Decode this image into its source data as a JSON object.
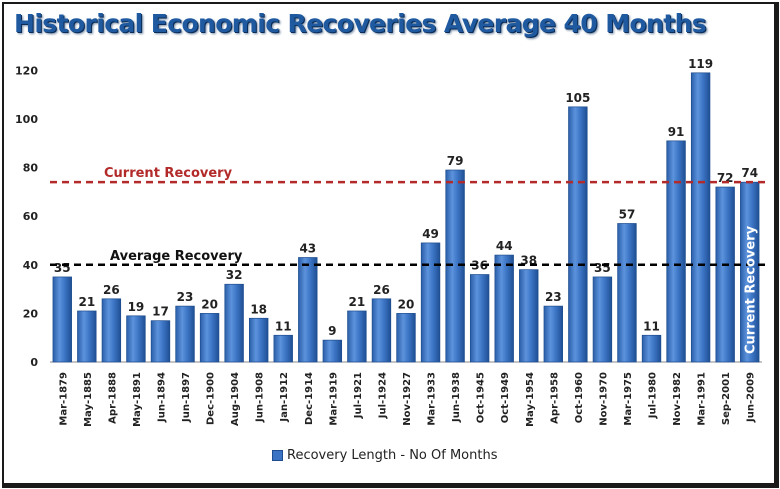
{
  "chart_data": {
    "type": "bar",
    "title": "Historical Economic Recoveries Average 40 Months",
    "categories": [
      "Mar-1879",
      "May-1885",
      "Apr-1888",
      "May-1891",
      "Jun-1894",
      "Jun-1897",
      "Dec-1900",
      "Aug-1904",
      "Jun-1908",
      "Jan-1912",
      "Dec-1914",
      "Mar-1919",
      "Jul-1921",
      "Jul-1924",
      "Nov-1927",
      "Mar-1933",
      "Jun-1938",
      "Oct-1945",
      "Oct-1949",
      "May-1954",
      "Apr-1958",
      "Oct-1960",
      "Nov-1970",
      "Mar-1975",
      "Jul-1980",
      "Nov-1982",
      "Mar-1991",
      "Sep-2001",
      "Jun-2009"
    ],
    "series": [
      {
        "name": "Recovery Length - No Of Months",
        "values": [
          35,
          21,
          26,
          19,
          17,
          23,
          20,
          32,
          18,
          11,
          43,
          9,
          21,
          26,
          20,
          49,
          79,
          36,
          44,
          38,
          23,
          105,
          35,
          57,
          11,
          91,
          119,
          72,
          74
        ],
        "color": "#3a72c4"
      }
    ],
    "yticks": [
      0,
      20,
      40,
      60,
      80,
      100,
      120
    ],
    "ylim": [
      0,
      130
    ],
    "grid": false,
    "legend_position": "bottom",
    "reference_lines": [
      {
        "label": "Current Recovery",
        "value": 74,
        "color": "#b22a2a"
      },
      {
        "label": "Average Recovery",
        "value": 40,
        "color": "#000000"
      }
    ],
    "annotations": [
      {
        "text": "Current Recovery",
        "category": "Jun-2009"
      }
    ]
  }
}
